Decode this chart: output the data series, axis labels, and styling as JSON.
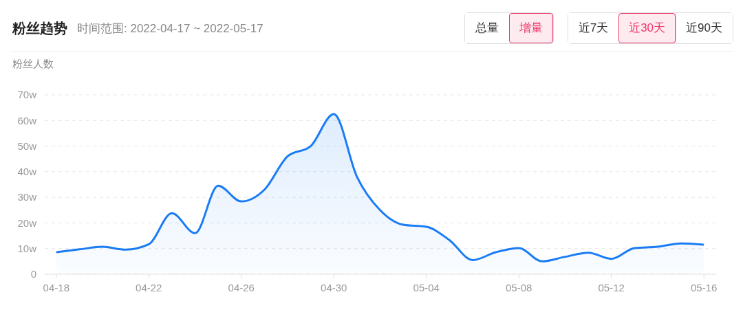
{
  "chart_data": {
    "type": "area",
    "title": "粉丝趋势",
    "subtitle": "时间范围: 2022-04-17 ~ 2022-05-17",
    "ylabel": "粉丝人数",
    "annotations": [
      "总量",
      "增量",
      "近7天",
      "近30天",
      "近90天"
    ],
    "categories": [
      "04-18",
      null,
      null,
      null,
      "04-22",
      null,
      null,
      null,
      "04-26",
      null,
      null,
      null,
      "04-30",
      null,
      null,
      null,
      "05-04",
      null,
      null,
      null,
      "05-08",
      null,
      null,
      null,
      "05-12",
      null,
      null,
      null,
      "05-16"
    ],
    "series": [
      {
        "color": "#1a7cf5",
        "values": [
          8.6,
          9.7,
          10.7,
          9.6,
          11.7,
          23.8,
          16,
          34.5,
          28.4,
          33,
          46,
          50,
          62.5,
          38,
          25,
          19.3,
          18.5,
          13.3,
          5.5,
          8.6,
          10.2,
          5,
          6.8,
          8.4,
          6,
          10.2,
          10.7,
          12,
          11.5
        ]
      }
    ],
    "ylim": [
      0,
      70
    ],
    "yticks": [
      0,
      {
        "value": 10,
        "label": "10w"
      },
      {
        "value": 20,
        "label": "20w"
      },
      {
        "value": 30,
        "label": "30w"
      },
      {
        "value": 40,
        "label": "40w"
      },
      {
        "value": 50,
        "label": "50w"
      },
      {
        "value": 60,
        "label": "60w"
      },
      {
        "value": 70,
        "label": "70w"
      }
    ],
    "grid": "y",
    "marker": "none",
    "line_style": "solid",
    "legend": false
  }
}
